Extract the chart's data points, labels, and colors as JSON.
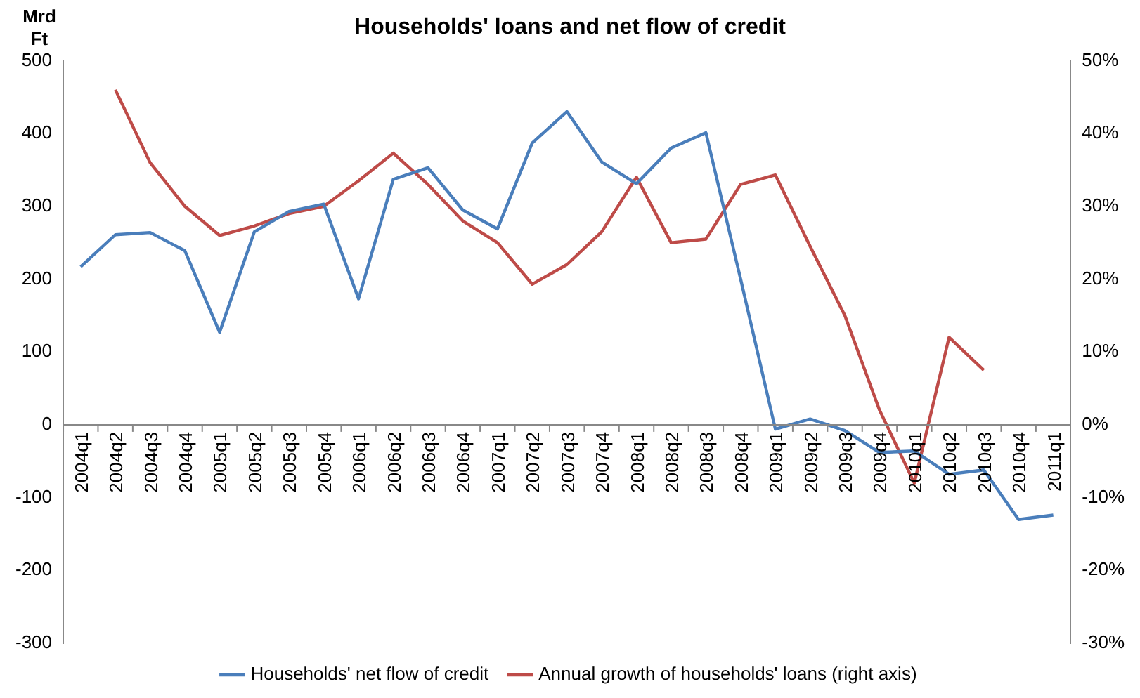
{
  "chart_data": {
    "type": "line",
    "title": "Households' loans and net flow of credit",
    "ylabel": "Mrd Ft",
    "categories": [
      "2004q1",
      "2004q2",
      "2004q3",
      "2004q4",
      "2005q1",
      "2005q2",
      "2005q3",
      "2005q4",
      "2006q1",
      "2006q2",
      "2006q3",
      "2006q4",
      "2007q1",
      "2007q2",
      "2007q3",
      "2007q4",
      "2008q1",
      "2008q2",
      "2008q3",
      "2008q4",
      "2009q1",
      "2009q2",
      "2009q3",
      "2009q4",
      "2010q1",
      "2010q2",
      "2010q3",
      "2010q4",
      "2011q1"
    ],
    "series": [
      {
        "name": "Households' net flow of credit",
        "color": "#4a7ebb",
        "values": [
          217,
          261,
          264,
          239,
          127,
          265,
          293,
          303,
          173,
          337,
          353,
          295,
          269,
          387,
          430,
          361,
          331,
          380,
          401,
          200,
          -6,
          8,
          -8,
          -38,
          -36,
          -68,
          -62,
          -130,
          -124
        ]
      },
      {
        "name": "Annual growth of households' loans (right axis)",
        "color": "#be4b48",
        "axis": "y2",
        "values": [
          null,
          46,
          36,
          30,
          26,
          27.3,
          29,
          30,
          33.5,
          37.3,
          33,
          28,
          25,
          19.3,
          22,
          26.5,
          34,
          25,
          25.5,
          33,
          34.3,
          24.5,
          15,
          2,
          -8,
          12,
          7.5,
          null,
          null
        ]
      }
    ],
    "ylim": [
      -300,
      500
    ],
    "yticks": [
      -300,
      -200,
      -100,
      0,
      100,
      200,
      300,
      400,
      500
    ],
    "y2lim": [
      -30,
      50
    ],
    "y2ticks": [
      {
        "value": -30,
        "label": "-30%"
      },
      {
        "value": -20,
        "label": "-20%"
      },
      {
        "value": -10,
        "label": "-10%"
      },
      {
        "value": 0,
        "label": "0%"
      },
      {
        "value": 10,
        "label": "10%"
      },
      {
        "value": 20,
        "label": "20%"
      },
      {
        "value": 30,
        "label": "30%"
      },
      {
        "value": 40,
        "label": "40%"
      },
      {
        "value": 50,
        "label": "50%"
      }
    ],
    "grid": false,
    "legend": "bottom",
    "marker": "none",
    "line_style": "solid"
  }
}
